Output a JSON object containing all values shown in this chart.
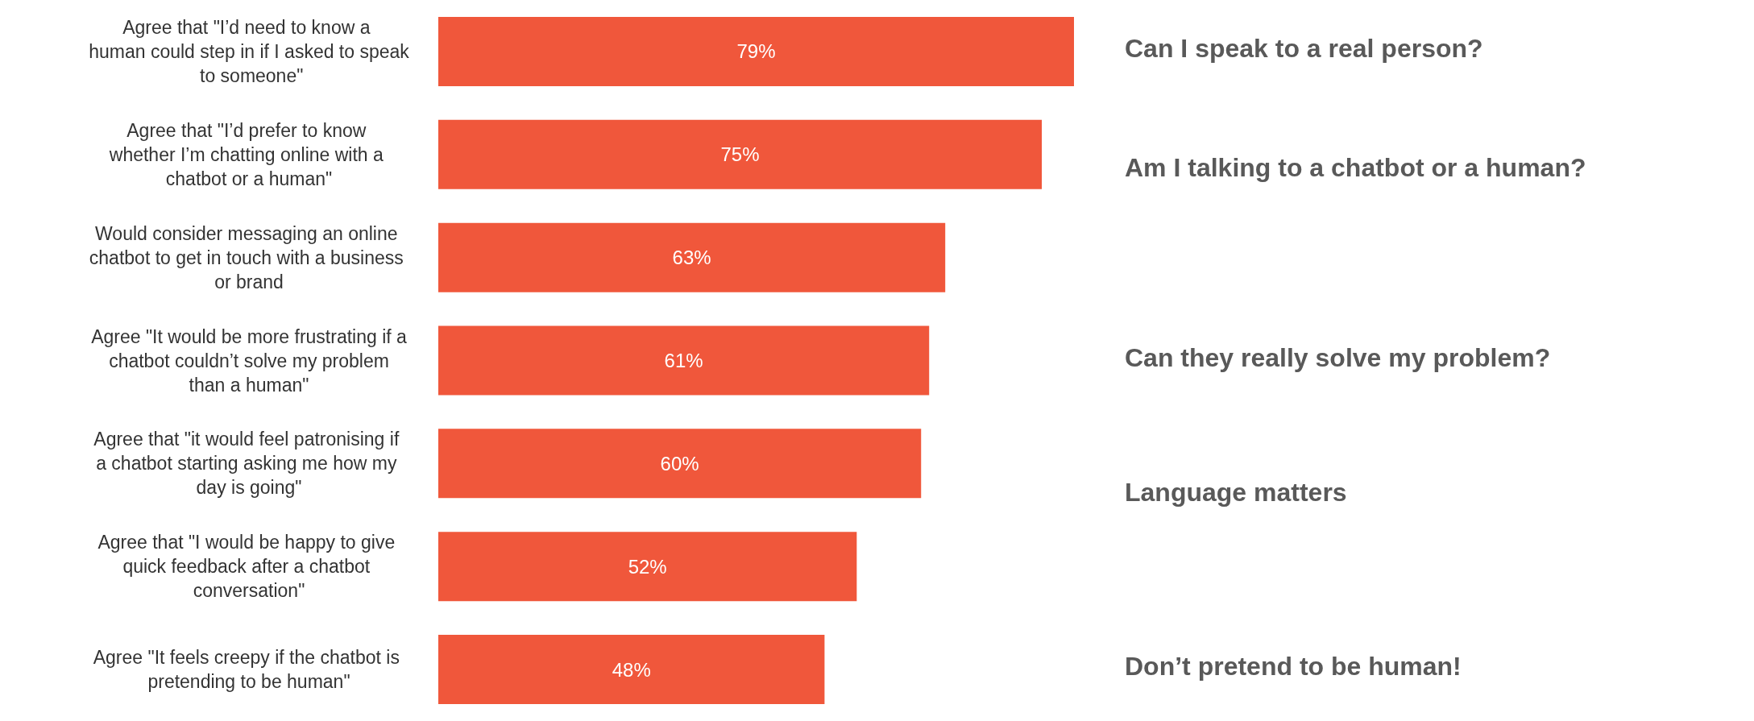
{
  "chart_data": {
    "type": "bar",
    "orientation": "horizontal",
    "categories": [
      "Agree that \"I’d need to know a human could step in if I asked to speak to someone\"",
      "Agree that \"I’d prefer to know whether I’m chatting online with a chatbot or a human\"",
      "Would consider messaging an online chatbot to get in touch with a business or brand",
      "Agree \"It would be more frustrating if a chatbot couldn’t solve my problem than a human\"",
      "Agree that \"it would feel patronising if a chatbot starting asking me how my day is going\"",
      "Agree that \"I would be happy to give quick feedback after a chatbot conversation\"",
      "Agree \"It feels creepy if the chatbot is pretending to be human\""
    ],
    "values": [
      79,
      75,
      63,
      61,
      60,
      52,
      48
    ],
    "value_labels": [
      "79%",
      "75%",
      "63%",
      "61%",
      "60%",
      "52%",
      "48%"
    ],
    "color": "#f0573b",
    "annotations": [
      "Can I speak to a real person?",
      "Am I talking to a chatbot or a human?",
      "Can they really solve my problem?",
      "Language matters",
      "Don’t pretend to be human!"
    ]
  }
}
